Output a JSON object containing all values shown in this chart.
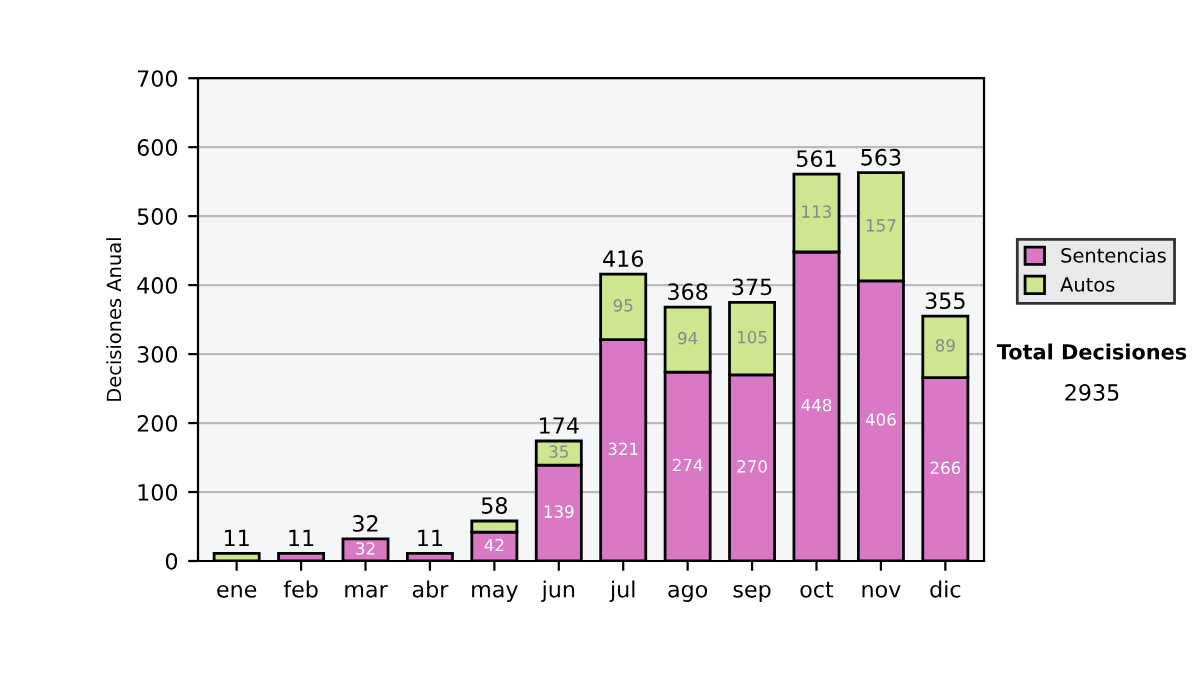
{
  "chart_data": {
    "type": "bar",
    "stacked": true,
    "ylabel": "Decisiones Anual",
    "categories": [
      "ene",
      "feb",
      "mar",
      "abr",
      "may",
      "jun",
      "jul",
      "ago",
      "sep",
      "oct",
      "nov",
      "dic"
    ],
    "series": [
      {
        "name": "Sentencias",
        "color": "#d978c4",
        "values": [
          0,
          11,
          32,
          11,
          42,
          139,
          321,
          274,
          270,
          448,
          406,
          266
        ],
        "value_labels": [
          null,
          null,
          "32",
          null,
          "42",
          "139",
          "321",
          "274",
          "270",
          "448",
          "406",
          "266"
        ]
      },
      {
        "name": "Autos",
        "color": "#cde68f",
        "values": [
          11,
          0,
          0,
          0,
          16,
          35,
          95,
          94,
          105,
          113,
          157,
          89
        ],
        "value_labels": [
          null,
          null,
          null,
          null,
          null,
          "35",
          "95",
          "94",
          "105",
          "113",
          "157",
          "89"
        ]
      }
    ],
    "totals": [
      "11",
      "11",
      "32",
      "11",
      "58",
      "174",
      "416",
      "368",
      "375",
      "561",
      "563",
      "355"
    ],
    "ylim": [
      0,
      700
    ],
    "yticks": [
      0,
      100,
      200,
      300,
      400,
      500,
      600,
      700
    ],
    "grid": "y",
    "legend": "right",
    "annotations": [
      "Total Decisiones",
      "2935"
    ]
  }
}
